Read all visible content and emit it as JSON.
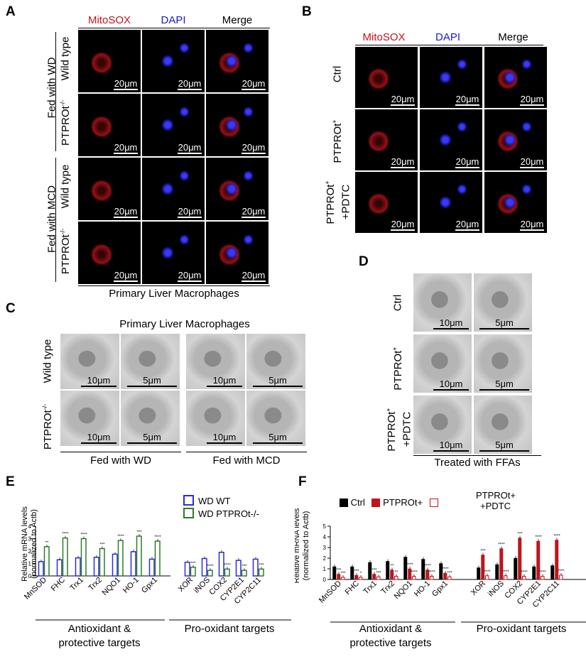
{
  "panels": {
    "A": {
      "letter": "A",
      "headers": [
        "MitoSOX",
        "DAPI",
        "Merge"
      ],
      "groups": [
        "Fed with WD",
        "Fed with MCD"
      ],
      "genotypes": [
        "Wild type",
        "PTPROt-/-",
        "Wild type",
        "PTPROt-/-"
      ],
      "scale": "20μm",
      "caption": "Primary Liver Macrophages"
    },
    "B": {
      "letter": "B",
      "headers": [
        "MitoSOX",
        "DAPI",
        "Merge"
      ],
      "rows": [
        "Ctrl",
        "PTPROt+",
        "PTPROt+",
        "+PDTC"
      ],
      "scale": "20μm"
    },
    "C": {
      "letter": "C",
      "title": "Primary Liver Macrophages",
      "rows": [
        "Wild type",
        "PTPROt-/-"
      ],
      "scale_big": "10μm",
      "scale_small": "5μm",
      "captions": [
        "Fed with WD",
        "Fed with MCD"
      ]
    },
    "D": {
      "letter": "D",
      "rows": [
        "Ctrl",
        "PTPROt+",
        "PTPROt+",
        "+PDTC"
      ],
      "scale_big": "10μm",
      "scale_small": "5μm",
      "caption": "Treated with FFAs"
    },
    "E": {
      "letter": "E",
      "legend": [
        "WD WT",
        "WD PTPROt-/-"
      ],
      "captions": [
        "Antioxidant &",
        "protective targets",
        "Pro-oxidant targets"
      ]
    },
    "F": {
      "letter": "F",
      "legend": [
        "Ctrl",
        "PTPROt+",
        "PTPROt+",
        "+PDTC"
      ],
      "captions": [
        "Antioxidant &",
        "protective targets",
        "Pro-oxidant targets"
      ]
    }
  },
  "colors": {
    "mitosox": "#c0141c",
    "dapi": "#1a1acc",
    "wt": "#2b2bd6",
    "ko": "#2f7a2f",
    "ctrl": "#000000",
    "ptpro": "#c0141c"
  },
  "chart_data": [
    {
      "type": "bar",
      "panel": "E",
      "ylabel": "Relative mRNA levels (normalized to Actb)",
      "categories": [
        "MnSOD",
        "FHC",
        "Trx1",
        "Trx2",
        "NQO1",
        "HO-1",
        "Gpx1",
        "XOR",
        "iNOS",
        "COX2",
        "CYP2E1",
        "CYP2C11"
      ],
      "series": [
        {
          "name": "WD WT",
          "values": [
            1.15,
            1.3,
            1.45,
            1.5,
            1.75,
            1.95,
            1.35,
            1.1,
            1.4,
            1.9,
            1.25,
            1.35
          ]
        },
        {
          "name": "WD PTPROt-/-",
          "values": [
            2.35,
            3.05,
            3.0,
            2.2,
            2.85,
            3.2,
            2.8,
            0.7,
            0.45,
            0.55,
            0.45,
            0.55
          ]
        }
      ],
      "significance": [
        "**",
        "****",
        "****",
        "***",
        "****",
        "***",
        "****",
        "***",
        "****",
        "****",
        "***",
        "***"
      ],
      "ylim": [
        0,
        4
      ]
    },
    {
      "type": "bar",
      "panel": "F",
      "ylabel": "Relative mRNA levels (normalized to Actb)",
      "categories": [
        "MnSOD",
        "FHC",
        "Trx1",
        "Trx2",
        "NQO1",
        "HO-1",
        "Gpx1",
        "XOR",
        "iNOS",
        "COX2",
        "CYP2E1",
        "CYP2C11"
      ],
      "series": [
        {
          "name": "Ctrl",
          "values": [
            1.2,
            1.2,
            1.6,
            1.7,
            2.1,
            1.9,
            1.5,
            1.1,
            1.4,
            2.0,
            1.2,
            1.3
          ]
        },
        {
          "name": "PTPROt+",
          "values": [
            0.5,
            0.4,
            0.5,
            0.9,
            1.0,
            0.9,
            0.6,
            2.3,
            2.9,
            3.9,
            3.6,
            3.7
          ]
        },
        {
          "name": "PTPROt+ +PDTC",
          "values": [
            0.2,
            0.2,
            0.25,
            0.3,
            0.3,
            0.3,
            0.25,
            0.35,
            0.35,
            0.3,
            0.3,
            0.4
          ]
        }
      ],
      "sig1": [
        "***",
        "***",
        "***",
        "**",
        "****",
        "****",
        "****",
        "***",
        "****",
        "***",
        "****",
        "****"
      ],
      "sig2": [
        "***",
        "*",
        "***",
        "**",
        "****",
        "****",
        "***",
        "****",
        "****",
        "****",
        "****",
        "****"
      ],
      "ylim": [
        0,
        5
      ]
    }
  ]
}
